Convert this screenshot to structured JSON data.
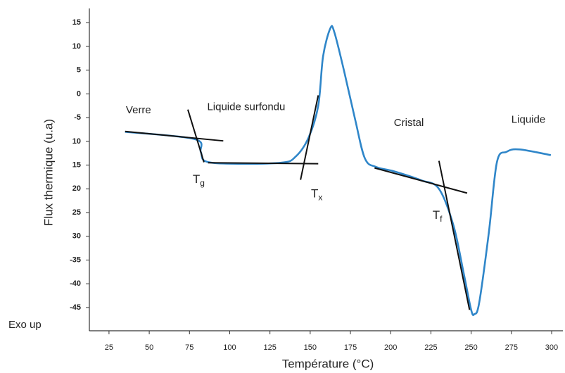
{
  "chart_data": {
    "type": "line",
    "xlabel": "Température (°C)",
    "ylabel": "Flux thermique (u.a)",
    "xlim": [
      12.8,
      307
    ],
    "ylim": [
      -49.9,
      18
    ],
    "xticks": [
      25,
      50,
      75,
      100,
      125,
      150,
      175,
      200,
      225,
      250,
      275,
      300
    ],
    "yticks": [
      15,
      10,
      5,
      0,
      -5,
      {
        "value": -10,
        "label": "10"
      },
      {
        "value": -15,
        "label": "15"
      },
      {
        "value": -20,
        "label": "20"
      },
      {
        "value": -25,
        "label": "25"
      },
      {
        "value": -30,
        "label": "30"
      },
      -35,
      -40,
      -45
    ],
    "series": [
      {
        "color": "#2f86c9",
        "x": [
          35,
          78,
          82,
          85,
          101,
          132,
          141,
          149,
          155,
          158,
          162.5,
          165,
          171,
          178,
          184,
          191,
          202,
          219,
          230,
          239,
          245.5,
          250,
          252,
          255,
          261,
          266,
          272,
          280,
          299.5
        ],
        "values": [
          -8,
          -9.5,
          -12.2,
          -14.2,
          -14.7,
          -14.5,
          -13.2,
          -9.2,
          -2.5,
          7.9,
          13.8,
          13,
          4.9,
          -5.5,
          -13.6,
          -15.4,
          -16.3,
          -18.2,
          -20,
          -27.7,
          -38,
          -45.5,
          -46.4,
          -44,
          -29.2,
          -14.4,
          -12.2,
          -11.7,
          -12.9
        ]
      }
    ],
    "tangents": {
      "color": "#111",
      "lines": [
        {
          "x": [
            35,
            96
          ],
          "y": [
            -7.9,
            -9.9
          ]
        },
        {
          "x": [
            74,
            84
          ],
          "y": [
            -3.3,
            -14.4
          ]
        },
        {
          "x": [
            86.5,
            155
          ],
          "y": [
            -14.5,
            -14.7
          ]
        },
        {
          "x": [
            144,
            155
          ],
          "y": [
            -18.1,
            -0.3
          ]
        },
        {
          "x": [
            190,
            247.5
          ],
          "y": [
            -15.6,
            -20.9
          ]
        },
        {
          "x": [
            230,
            249
          ],
          "y": [
            -14.1,
            -45.5
          ]
        }
      ]
    },
    "annotations": [
      {
        "text": "Verre",
        "x": 35.5,
        "y": -3.5
      },
      {
        "text": "Liquide surfondu",
        "x": 86,
        "y": -2.8
      },
      {
        "text": "Cristal",
        "x": 202,
        "y": -6.2
      },
      {
        "text": "Liquide",
        "x": 275,
        "y": -5.5
      },
      {
        "text": "T",
        "sub": "g",
        "x": 77,
        "y": -18.2
      },
      {
        "text": "T",
        "sub": "x",
        "x": 150.5,
        "y": -21.2
      },
      {
        "text": "T",
        "sub": "f",
        "x": 226,
        "y": -25.7
      }
    ],
    "note": "Exo up"
  }
}
